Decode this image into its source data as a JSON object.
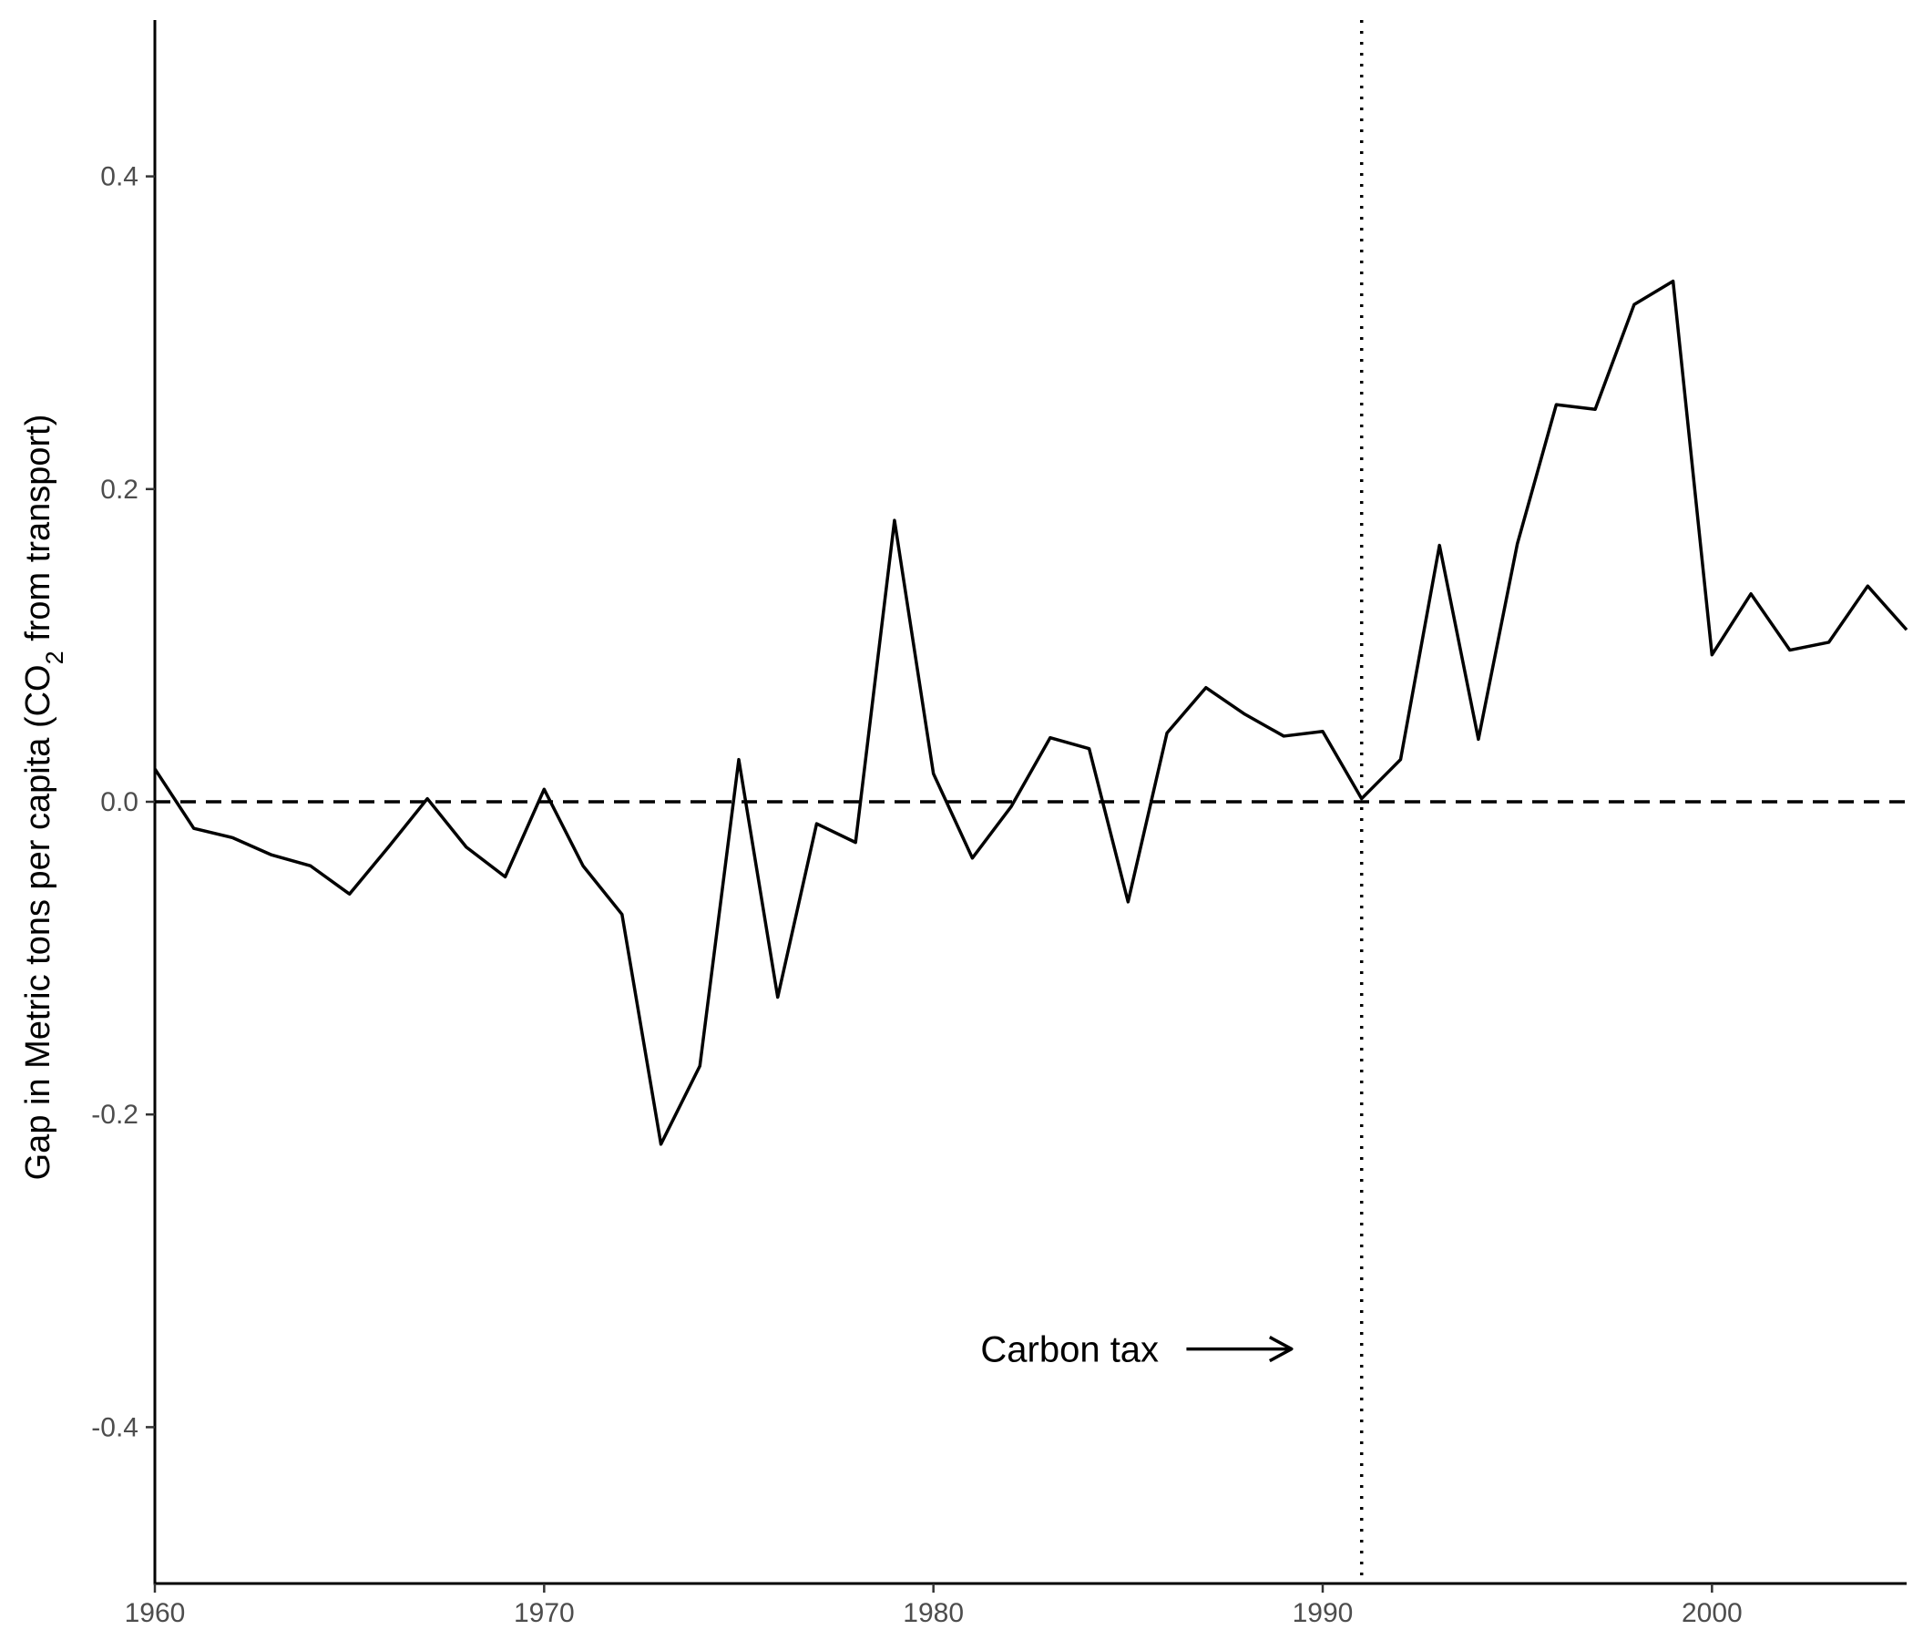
{
  "chart_data": {
    "type": "line",
    "title": "",
    "xlabel": "",
    "ylabel": {
      "prefix": "Gap in Metric tons per capita (CO",
      "subscript": "2",
      "suffix": " from transport)"
    },
    "xlim": [
      1960,
      2005
    ],
    "ylim": [
      -0.5,
      0.5
    ],
    "x_ticks": [
      1960,
      1970,
      1980,
      1990,
      2000
    ],
    "x_tick_labels": [
      "1960",
      "1970",
      "1980",
      "1990",
      "2000"
    ],
    "y_ticks": [
      -0.4,
      -0.2,
      0.0,
      0.2,
      0.4
    ],
    "y_tick_labels": [
      "-0.4",
      "-0.2",
      "0.0",
      "0.2",
      "0.4"
    ],
    "grid": false,
    "legend": "none",
    "series": [
      {
        "x": [
          1960,
          1961,
          1962,
          1963,
          1964,
          1965,
          1966,
          1967,
          1968,
          1969,
          1970,
          1971,
          1972,
          1973,
          1974,
          1975,
          1976,
          1977,
          1978,
          1979,
          1980,
          1981,
          1982,
          1983,
          1984,
          1985,
          1986,
          1987,
          1988,
          1989,
          1990,
          1991,
          1992,
          1993,
          1994,
          1995,
          1996,
          1997,
          1998,
          1999,
          2000,
          2001,
          2002,
          2003,
          2004,
          2005
        ],
        "values": [
          0.021,
          -0.017,
          -0.023,
          -0.034,
          -0.041,
          -0.059,
          -0.029,
          0.002,
          -0.029,
          -0.048,
          0.008,
          -0.041,
          -0.072,
          -0.219,
          -0.169,
          0.027,
          -0.125,
          -0.014,
          -0.026,
          0.18,
          0.018,
          -0.036,
          -0.003,
          0.041,
          0.034,
          -0.064,
          0.044,
          0.073,
          0.056,
          0.042,
          0.045,
          0.002,
          0.027,
          0.164,
          0.04,
          0.165,
          0.254,
          0.251,
          0.318,
          0.333,
          0.094,
          0.133,
          0.097,
          0.102,
          0.138,
          0.11
        ],
        "color": "#000000"
      }
    ],
    "reference_lines": [
      {
        "orientation": "horizontal",
        "value": 0.0,
        "style": "dashed"
      },
      {
        "orientation": "vertical",
        "value": 1991,
        "style": "dotted"
      }
    ],
    "annotations": [
      {
        "text": "Carbon tax",
        "x": 1983.5,
        "y": -0.35,
        "arrow": {
          "from_x": 1986.5,
          "to_x": 1989.2,
          "y": -0.35
        }
      }
    ]
  }
}
